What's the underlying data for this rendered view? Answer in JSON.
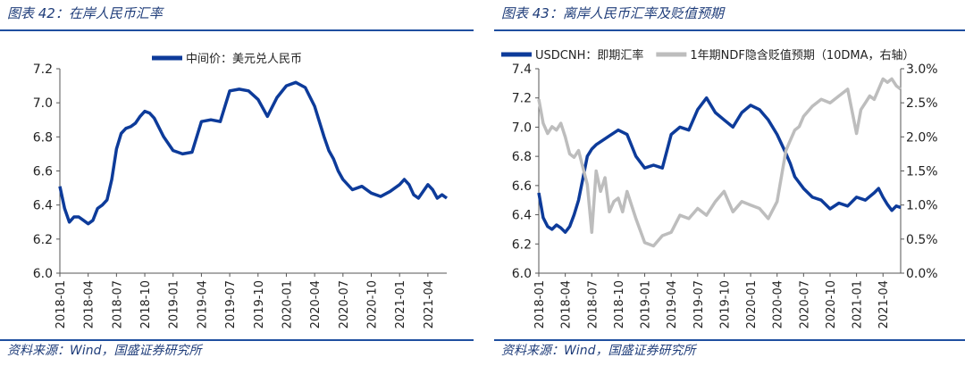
{
  "charts": [
    {
      "figure_title": "图表 42：在岸人民币汇率",
      "source": "资料来源：Wind，国盛证券研究所",
      "chart_data": {
        "type": "line",
        "title": "",
        "xlabel": "",
        "ylabel": "",
        "ylim": [
          6.0,
          7.2
        ],
        "yticks": [
          "6.0",
          "6.2",
          "6.4",
          "6.6",
          "6.8",
          "7.0",
          "7.2"
        ],
        "x_ticks": [
          "2018-01",
          "2018-04",
          "2018-07",
          "2018-10",
          "2019-01",
          "2019-04",
          "2019-07",
          "2019-10",
          "2020-01",
          "2020-04",
          "2020-07",
          "2020-10",
          "2021-01",
          "2021-04"
        ],
        "x_range": [
          0,
          41
        ],
        "grid": false,
        "legend_position": "top-center",
        "series": [
          {
            "name": "中间价：美元兑人民币",
            "color": "#0d3b9a",
            "axis": "left",
            "x": [
              0,
              0.5,
              1,
              1.5,
              2,
              2.5,
              3,
              3.5,
              4,
              4.5,
              5,
              5.5,
              6,
              6.5,
              7,
              7.5,
              8,
              8.5,
              9,
              9.5,
              10,
              11,
              12,
              13,
              14,
              15,
              16,
              17,
              18,
              19,
              20,
              21,
              22,
              23,
              24,
              25,
              26,
              27,
              28,
              28.5,
              29,
              29.5,
              30,
              31,
              32,
              33,
              34,
              35,
              36,
              36.5,
              37,
              37.5,
              38,
              38.5,
              39,
              39.5,
              40,
              40.5,
              41
            ],
            "values": [
              6.51,
              6.38,
              6.3,
              6.33,
              6.33,
              6.31,
              6.29,
              6.31,
              6.38,
              6.4,
              6.43,
              6.55,
              6.73,
              6.82,
              6.85,
              6.86,
              6.88,
              6.92,
              6.95,
              6.94,
              6.91,
              6.8,
              6.72,
              6.7,
              6.71,
              6.89,
              6.9,
              6.89,
              7.07,
              7.08,
              7.07,
              7.02,
              6.92,
              7.03,
              7.1,
              7.12,
              7.09,
              6.98,
              6.8,
              6.72,
              6.67,
              6.6,
              6.55,
              6.49,
              6.51,
              6.47,
              6.45,
              6.48,
              6.52,
              6.55,
              6.52,
              6.46,
              6.44,
              6.48,
              6.52,
              6.49,
              6.44,
              6.46,
              6.44
            ]
          }
        ]
      }
    },
    {
      "figure_title": "图表 43：离岸人民币汇率及贬值预期",
      "source": "资料来源：Wind，国盛证券研究所",
      "chart_data": {
        "type": "line",
        "title": "",
        "xlabel": "",
        "ylabel": "",
        "ylim": [
          6.0,
          7.4
        ],
        "y2lim": [
          0.0,
          3.0
        ],
        "yticks": [
          "6.0",
          "6.2",
          "6.4",
          "6.6",
          "6.8",
          "7.0",
          "7.2",
          "7.4"
        ],
        "y2ticks": [
          "0.0%",
          "0.5%",
          "1.0%",
          "1.5%",
          "2.0%",
          "2.5%",
          "3.0%"
        ],
        "x_ticks": [
          "2018-01",
          "2018-04",
          "2018-07",
          "2018-10",
          "2019-01",
          "2019-04",
          "2019-07",
          "2019-10",
          "2020-01",
          "2020-04",
          "2020-07",
          "2020-10",
          "2021-01",
          "2021-04"
        ],
        "x_range": [
          0,
          41
        ],
        "grid": false,
        "legend_position": "top-left",
        "series": [
          {
            "name": "USDCNH：即期汇率",
            "color": "#0d3b9a",
            "axis": "left",
            "x": [
              0,
              0.5,
              1,
              1.5,
              2,
              2.5,
              3,
              3.5,
              4,
              4.5,
              5,
              5.5,
              6,
              6.5,
              7,
              8,
              9,
              10,
              11,
              12,
              13,
              14,
              15,
              16,
              17,
              18,
              19,
              20,
              21,
              22,
              23,
              24,
              25,
              26,
              27,
              28,
              28.5,
              29,
              30,
              31,
              32,
              33,
              34,
              35,
              36,
              37,
              38,
              38.5,
              39,
              39.5,
              40,
              40.5,
              41
            ],
            "values": [
              6.55,
              6.38,
              6.32,
              6.3,
              6.33,
              6.31,
              6.28,
              6.32,
              6.4,
              6.5,
              6.65,
              6.8,
              6.85,
              6.88,
              6.9,
              6.94,
              6.98,
              6.95,
              6.8,
              6.72,
              6.74,
              6.72,
              6.95,
              7.0,
              6.98,
              7.12,
              7.2,
              7.1,
              7.05,
              7.0,
              7.1,
              7.15,
              7.12,
              7.05,
              6.95,
              6.82,
              6.75,
              6.66,
              6.58,
              6.52,
              6.5,
              6.44,
              6.48,
              6.46,
              6.52,
              6.5,
              6.55,
              6.58,
              6.52,
              6.47,
              6.43,
              6.46,
              6.45
            ]
          },
          {
            "name": "1年期NDF隐含贬值预期（10DMA，右轴）",
            "color": "#bdbdbd",
            "axis": "right",
            "x": [
              0,
              0.5,
              1,
              1.5,
              2,
              2.5,
              3,
              3.5,
              4,
              4.5,
              5,
              5.5,
              6,
              6.5,
              7,
              7.5,
              8,
              8.5,
              9,
              9.5,
              10,
              11,
              12,
              13,
              14,
              15,
              16,
              17,
              18,
              19,
              20,
              21,
              22,
              23,
              24,
              25,
              26,
              27,
              28,
              28.5,
              29,
              29.5,
              30,
              31,
              32,
              33,
              34,
              35,
              36,
              36.5,
              37,
              37.5,
              38,
              38.5,
              39,
              39.5,
              40,
              40.5,
              41
            ],
            "values": [
              2.55,
              2.2,
              2.05,
              2.15,
              2.1,
              2.2,
              2.0,
              1.75,
              1.7,
              1.8,
              1.55,
              1.3,
              0.6,
              1.5,
              1.2,
              1.4,
              0.9,
              1.05,
              1.1,
              0.9,
              1.2,
              0.8,
              0.45,
              0.4,
              0.55,
              0.6,
              0.85,
              0.8,
              0.95,
              0.85,
              1.05,
              1.2,
              0.9,
              1.05,
              1.0,
              0.95,
              0.8,
              1.05,
              1.8,
              1.95,
              2.1,
              2.15,
              2.3,
              2.45,
              2.55,
              2.5,
              2.6,
              2.7,
              2.05,
              2.4,
              2.5,
              2.6,
              2.55,
              2.7,
              2.85,
              2.8,
              2.85,
              2.75,
              2.7
            ]
          }
        ]
      }
    }
  ]
}
